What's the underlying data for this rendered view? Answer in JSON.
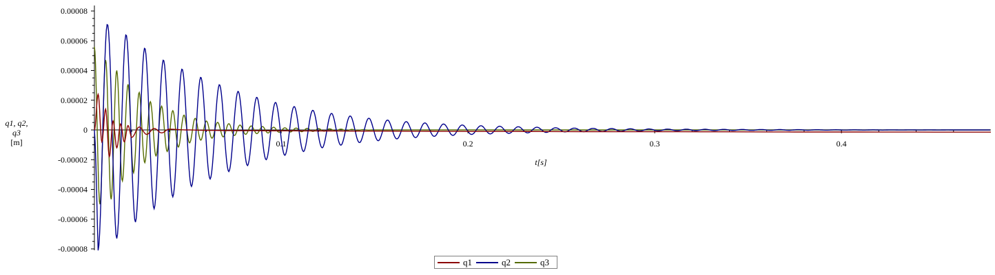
{
  "chart_data": {
    "type": "line",
    "title": "",
    "xlabel": "t[s]",
    "ylabel": "q1, q2, q3",
    "ylabel_unit": "[m]",
    "xlim": [
      0,
      0.48
    ],
    "ylim": [
      -8e-05,
      8e-05
    ],
    "xticks": [
      "0.1",
      "0.2",
      "0.3",
      "0.4"
    ],
    "yticks": [
      "0.00008",
      "0.00006",
      "0.00004",
      "0.00002",
      "0",
      "-0.00002",
      "-0.00004",
      "-0.00006",
      "-0.00008"
    ],
    "grid": false,
    "legend_position": "bottom-center",
    "series": [
      {
        "name": "q1",
        "color": "#8b0000",
        "x": [
          0,
          0.002,
          0.004,
          0.006,
          0.008,
          0.01,
          0.012,
          0.014,
          0.016,
          0.018,
          0.02,
          0.024,
          0.028,
          0.032,
          0.036,
          0.04,
          0.05,
          0.06,
          0.08,
          0.1,
          0.15,
          0.2,
          0.3,
          0.4,
          0.48
        ],
        "values": [
          0,
          2.4e-05,
          -8e-06,
          1.4e-05,
          -1.8e-05,
          6e-06,
          -1.2e-05,
          4e-06,
          -8e-06,
          3e-06,
          -5e-06,
          2e-06,
          -3e-06,
          1e-06,
          -2e-06,
          5e-07,
          0,
          -3e-07,
          -5e-07,
          -6e-07,
          -8e-07,
          -1e-06,
          -1.2e-06,
          -1.4e-06,
          -1.5e-06
        ]
      },
      {
        "name": "q2",
        "color": "#00008b",
        "x": [
          0,
          0.002,
          0.007,
          0.012,
          0.017,
          0.022,
          0.027,
          0.032,
          0.037,
          0.042,
          0.047,
          0.052,
          0.062,
          0.072,
          0.082,
          0.092,
          0.102,
          0.122,
          0.142,
          0.162,
          0.182,
          0.202,
          0.252,
          0.302,
          0.352,
          0.402,
          0.48
        ],
        "values": [
          0,
          -8.1e-05,
          7.1e-05,
          -7.3e-05,
          6.4e-05,
          -6.2e-05,
          5.5e-05,
          -5.3e-05,
          4.7e-05,
          -4.5e-05,
          4.1e-05,
          -3.8e-05,
          -3.3e-05,
          -2.8e-05,
          -2.4e-05,
          -2e-05,
          -1.7e-05,
          -1.2e-05,
          -8.5e-06,
          -6e-06,
          -4.3e-06,
          -3e-06,
          -1.3e-06,
          -6e-07,
          -3e-07,
          -1e-07,
          0
        ]
      },
      {
        "name": "q3",
        "color": "#556b00",
        "x": [
          0,
          0.002,
          0.005,
          0.008,
          0.011,
          0.014,
          0.017,
          0.02,
          0.025,
          0.03,
          0.04,
          0.05,
          0.06,
          0.08,
          0.1,
          0.15,
          0.2,
          0.48
        ],
        "values": [
          5.6e-05,
          -5.2e-05,
          4.6e-05,
          -4.9e-05,
          4.2e-05,
          -3.6e-05,
          3.1e-05,
          -3e-05,
          2.4e-05,
          -1.9e-05,
          -1.4e-05,
          -9e-06,
          -6e-06,
          -3e-06,
          -1.5e-06,
          0,
          0,
          0
        ]
      }
    ]
  }
}
